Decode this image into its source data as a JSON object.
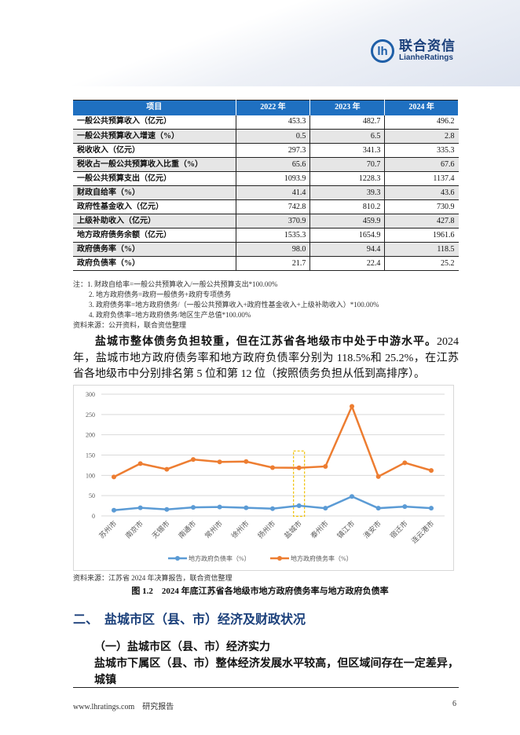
{
  "header": {
    "logo_cn": "联合资信",
    "logo_en": "LianheRatings",
    "brand_color": "#1f5fa8"
  },
  "table": {
    "columns": [
      "项目",
      "2022 年",
      "2023 年",
      "2024 年"
    ],
    "rows": [
      {
        "label": "一般公共预算收入（亿元）",
        "values": [
          "453.3",
          "482.7",
          "496.2"
        ]
      },
      {
        "label": "一般公共预算收入增速（%）",
        "values": [
          "0.5",
          "6.5",
          "2.8"
        ]
      },
      {
        "label": "税收收入（亿元）",
        "values": [
          "297.3",
          "341.3",
          "335.3"
        ]
      },
      {
        "label": "税收占一般公共预算收入比重（%）",
        "values": [
          "65.6",
          "70.7",
          "67.6"
        ]
      },
      {
        "label": "一般公共预算支出（亿元）",
        "values": [
          "1093.9",
          "1228.3",
          "1137.4"
        ]
      },
      {
        "label": "财政自给率（%）",
        "values": [
          "41.4",
          "39.3",
          "43.6"
        ]
      },
      {
        "label": "政府性基金收入（亿元）",
        "values": [
          "742.8",
          "810.2",
          "730.9"
        ]
      },
      {
        "label": "上级补助收入（亿元）",
        "values": [
          "370.9",
          "459.9",
          "427.8"
        ]
      },
      {
        "label": "地方政府债务余额（亿元）",
        "values": [
          "1535.3",
          "1654.9",
          "1961.6"
        ]
      },
      {
        "label": "政府债务率（%）",
        "values": [
          "98.0",
          "94.4",
          "118.5"
        ]
      },
      {
        "label": "政府负债率（%）",
        "values": [
          "21.7",
          "22.4",
          "25.2"
        ]
      }
    ],
    "header_color": "#1f70c1"
  },
  "notes": [
    "注：1. 财政自给率=一般公共预算收入/一般公共预算支出*100.00%",
    "2. 地方政府债务=政府一般债务+政府专项债务",
    "3. 政府债务率=地方政府债务/（一般公共预算收入+政府性基金收入+上级补助收入）*100.00%",
    "4. 政府负债率=地方政府债务/地区生产总值*100.00%",
    "资料来源：公开资料，联合资信整理"
  ],
  "para1": {
    "bold": "盐城市整体债务负担较重，但在江苏省各地级市中处于中游水平。",
    "rest": "2024 年，盐城市地方政府债务率和地方政府负债率分别为 118.5%和 25.2%，在江苏省各地级市中分别排名第 5 位和第 12 位（按照债务负担从低到高排序）。"
  },
  "chart_data": {
    "type": "line",
    "categories": [
      "苏州市",
      "南京市",
      "无锡市",
      "南通市",
      "常州市",
      "徐州市",
      "扬州市",
      "盐城市",
      "泰州市",
      "镇江市",
      "淮安市",
      "宿迁市",
      "连云港市"
    ],
    "series": [
      {
        "name": "地方政府负债率（%）",
        "color": "#5b9bd5",
        "values": [
          14,
          20,
          16,
          21,
          22,
          20,
          18,
          25.2,
          19,
          48,
          19,
          23,
          19
        ]
      },
      {
        "name": "地方政府债务率（%）",
        "color": "#ed7d31",
        "values": [
          96,
          129,
          115,
          139,
          133,
          134,
          119,
          118.5,
          122,
          270,
          97,
          131,
          112
        ]
      }
    ],
    "yticks": [
      "0",
      "50",
      "100",
      "150",
      "200",
      "250",
      "300"
    ],
    "ylim": [
      0,
      300
    ],
    "grid": true,
    "legend": "bottom",
    "highlight_category": "盐城市",
    "highlight_color": "#f0c000"
  },
  "chart_source": "资料来源：江苏省 2024 年决算报告，联合资信整理",
  "caption": "图 1.2　2024 年底江苏省各地级市地方政府债务率与地方政府负债率",
  "section_heading": "二、　盐城市区（县、市）经济及财政状况",
  "subheading": "（一）盐城市区（县、市）经济实力",
  "para2": "盐城市下属区（县、市）整体经济发展水平较高，但区域间存在一定差异，城镇",
  "footer": {
    "site": "www.lhratings.com　研究报告",
    "page": "6"
  }
}
